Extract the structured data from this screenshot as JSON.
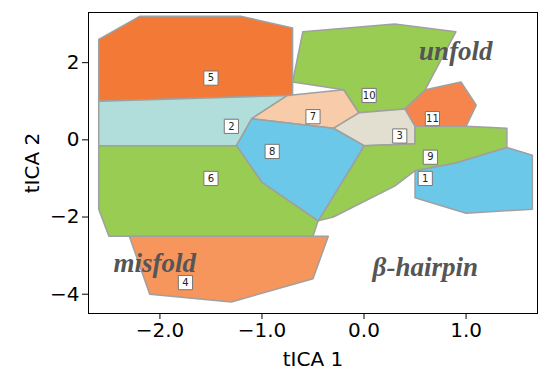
{
  "chart_data": {
    "type": "scatter",
    "x_label": "tICA 1",
    "y_label": "tICA 2",
    "xlim": [
      -2.7,
      1.7
    ],
    "ylim": [
      -4.5,
      3.3
    ],
    "xticks": [
      -2,
      -1,
      0,
      1
    ],
    "yticks": [
      -4,
      -2,
      0,
      2
    ],
    "grid": false,
    "series": [
      {
        "name": "5",
        "color": "#f26a21",
        "label_position": [
          -1.5,
          1.6
        ],
        "polygon": [
          [
            -2.6,
            1.0
          ],
          [
            -2.6,
            2.6
          ],
          [
            -2.2,
            3.2
          ],
          [
            -1.2,
            3.2
          ],
          [
            -0.7,
            2.9
          ],
          [
            -0.7,
            1.15
          ]
        ]
      },
      {
        "name": "2",
        "color": "#a9d9d6",
        "label_position": [
          -1.3,
          0.35
        ],
        "polygon": [
          [
            -2.6,
            -0.15
          ],
          [
            -2.6,
            1.0
          ],
          [
            -0.75,
            1.15
          ],
          [
            -1.1,
            0.55
          ],
          [
            -1.25,
            -0.15
          ]
        ]
      },
      {
        "name": "7",
        "color": "#f7c6a0",
        "label_position": [
          -0.5,
          0.6
        ],
        "polygon": [
          [
            -0.75,
            1.15
          ],
          [
            -0.2,
            1.3
          ],
          [
            -0.05,
            0.7
          ],
          [
            -0.3,
            0.3
          ],
          [
            -1.1,
            0.55
          ]
        ]
      },
      {
        "name": "10",
        "color": "#8dc63f",
        "label_position": [
          0.05,
          1.15
        ],
        "polygon": [
          [
            -0.7,
            1.5
          ],
          [
            -0.6,
            2.8
          ],
          [
            0.3,
            3.0
          ],
          [
            0.9,
            2.8
          ],
          [
            0.6,
            1.3
          ],
          [
            0.4,
            0.8
          ],
          [
            -0.05,
            0.7
          ],
          [
            -0.2,
            1.3
          ]
        ]
      },
      {
        "name": "11",
        "color": "#f4783a",
        "label_position": [
          0.67,
          0.55
        ],
        "polygon": [
          [
            0.4,
            0.8
          ],
          [
            0.6,
            1.3
          ],
          [
            0.95,
            1.5
          ],
          [
            1.1,
            0.9
          ],
          [
            1.0,
            0.35
          ],
          [
            0.5,
            0.35
          ]
        ]
      },
      {
        "name": "3",
        "color": "#e0dccb",
        "label_position": [
          0.35,
          0.1
        ],
        "polygon": [
          [
            -0.05,
            0.7
          ],
          [
            0.4,
            0.8
          ],
          [
            0.5,
            0.35
          ],
          [
            0.5,
            -0.1
          ],
          [
            0.0,
            -0.15
          ],
          [
            -0.3,
            0.3
          ]
        ]
      },
      {
        "name": "9",
        "color": "#8dc63f",
        "label_position": [
          0.65,
          -0.45
        ],
        "polygon": [
          [
            0.5,
            0.35
          ],
          [
            1.0,
            0.35
          ],
          [
            1.4,
            0.3
          ],
          [
            1.4,
            -0.2
          ],
          [
            0.9,
            -0.6
          ],
          [
            0.5,
            -0.8
          ],
          [
            0.3,
            -1.2
          ],
          [
            -0.3,
            -2.0
          ],
          [
            -0.45,
            -2.1
          ],
          [
            -0.1,
            -0.6
          ],
          [
            0.0,
            -0.15
          ],
          [
            0.5,
            -0.1
          ]
        ]
      },
      {
        "name": "1",
        "color": "#5bc2e7",
        "label_position": [
          0.6,
          -1.0
        ],
        "polygon": [
          [
            0.5,
            -0.8
          ],
          [
            0.9,
            -0.6
          ],
          [
            1.4,
            -0.2
          ],
          [
            1.65,
            -0.4
          ],
          [
            1.65,
            -1.8
          ],
          [
            1.0,
            -1.9
          ],
          [
            0.5,
            -1.5
          ]
        ]
      },
      {
        "name": "8",
        "color": "#5bc2e7",
        "label_position": [
          -0.9,
          -0.3
        ],
        "polygon": [
          [
            -1.25,
            -0.15
          ],
          [
            -1.1,
            0.55
          ],
          [
            -0.3,
            0.3
          ],
          [
            0.0,
            -0.15
          ],
          [
            -0.1,
            -0.6
          ],
          [
            -0.45,
            -2.1
          ],
          [
            -1.0,
            -1.1
          ]
        ]
      },
      {
        "name": "6",
        "color": "#8dc63f",
        "label_position": [
          -1.5,
          -1.0
        ],
        "polygon": [
          [
            -2.6,
            -0.15
          ],
          [
            -1.25,
            -0.15
          ],
          [
            -1.0,
            -1.1
          ],
          [
            -0.45,
            -2.1
          ],
          [
            -0.5,
            -2.5
          ],
          [
            -2.5,
            -2.5
          ],
          [
            -2.6,
            -1.8
          ]
        ]
      },
      {
        "name": "4",
        "color": "#f5894a",
        "label_position": [
          -1.75,
          -3.7
        ],
        "polygon": [
          [
            -2.3,
            -2.5
          ],
          [
            -0.35,
            -2.5
          ],
          [
            -0.5,
            -3.6
          ],
          [
            -1.3,
            -4.2
          ],
          [
            -2.1,
            -4.0
          ]
        ]
      }
    ],
    "annotations": [
      {
        "text": "unfold",
        "x": 0.9,
        "y": 2.3
      },
      {
        "text": "misfold",
        "x": -2.05,
        "y": -3.2
      },
      {
        "text": "β-hairpin",
        "x": 0.6,
        "y": -3.3
      }
    ]
  }
}
